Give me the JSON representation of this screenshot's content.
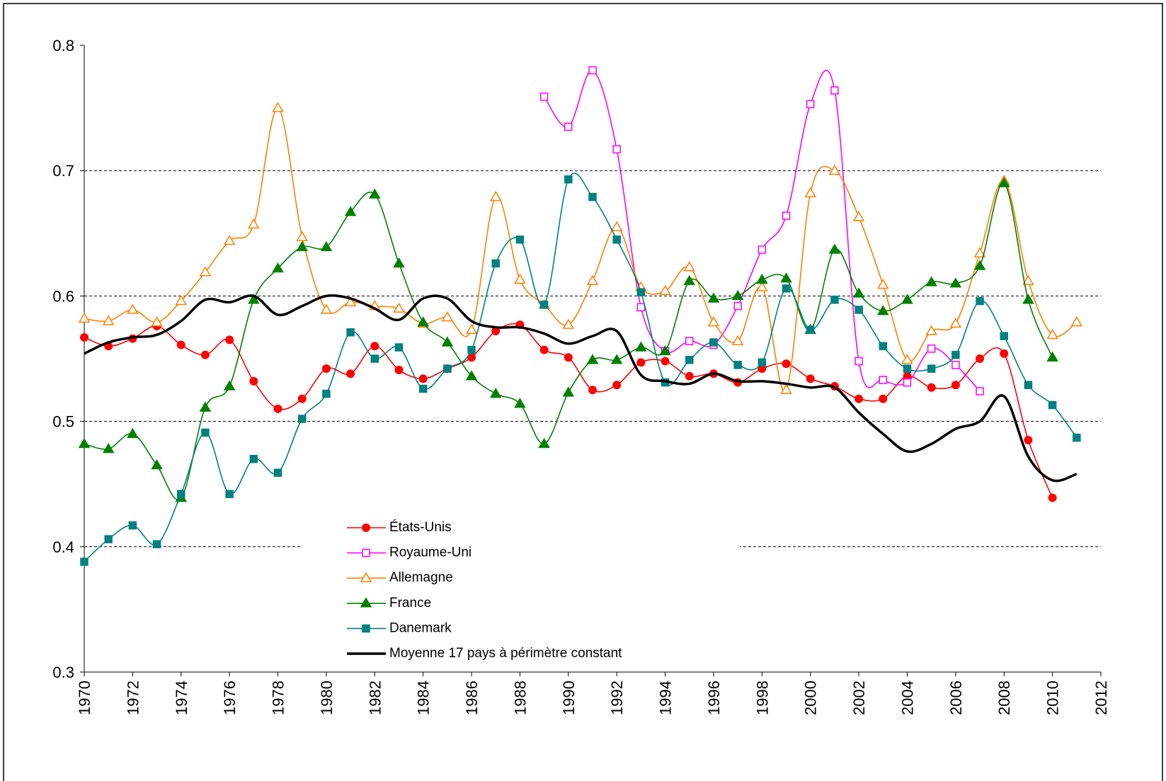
{
  "chart_data": {
    "type": "line",
    "x": [
      1970,
      1971,
      1972,
      1973,
      1974,
      1975,
      1976,
      1977,
      1978,
      1979,
      1980,
      1981,
      1982,
      1983,
      1984,
      1985,
      1986,
      1987,
      1988,
      1989,
      1990,
      1991,
      1992,
      1993,
      1994,
      1995,
      1996,
      1997,
      1998,
      1999,
      2000,
      2001,
      2002,
      2003,
      2004,
      2005,
      2006,
      2007,
      2008,
      2009,
      2010,
      2011
    ],
    "xlim": [
      1970,
      2012
    ],
    "xticks": [
      1970,
      1972,
      1974,
      1976,
      1978,
      1980,
      1982,
      1984,
      1986,
      1988,
      1990,
      1992,
      1994,
      1996,
      1998,
      2000,
      2002,
      2004,
      2006,
      2008,
      2010,
      2012
    ],
    "ylim": [
      0.3,
      0.8
    ],
    "yticks": [
      0.3,
      0.4,
      0.5,
      0.6,
      0.7,
      0.8
    ],
    "grid": true,
    "series": [
      {
        "name": "États-Unis",
        "color": "#ff0000",
        "marker": "circle",
        "values": [
          0.567,
          0.56,
          0.566,
          0.576,
          0.561,
          0.553,
          0.565,
          0.532,
          0.51,
          0.518,
          0.542,
          0.538,
          0.56,
          0.541,
          0.534,
          0.542,
          0.551,
          0.572,
          0.577,
          0.557,
          0.551,
          0.525,
          0.529,
          0.547,
          0.548,
          0.536,
          0.538,
          0.531,
          0.542,
          0.546,
          0.534,
          0.528,
          0.518,
          0.518,
          0.536,
          0.527,
          0.529,
          0.55,
          0.554,
          0.485,
          0.439,
          null
        ]
      },
      {
        "name": "Royaume-Uni",
        "color": "#ff00ff",
        "marker": "square-open",
        "values": [
          null,
          null,
          null,
          null,
          null,
          null,
          null,
          null,
          null,
          null,
          null,
          null,
          null,
          null,
          null,
          null,
          null,
          null,
          null,
          0.759,
          0.735,
          0.78,
          0.717,
          0.591,
          0.556,
          0.564,
          0.561,
          0.592,
          0.637,
          0.664,
          0.753,
          0.764,
          0.548,
          0.533,
          0.531,
          0.558,
          0.545,
          0.524,
          null,
          null,
          null,
          null
        ]
      },
      {
        "name": "Allemagne",
        "color": "#ff8000",
        "marker": "triangle-open",
        "values": [
          0.582,
          0.58,
          0.589,
          0.579,
          0.596,
          0.619,
          0.644,
          0.657,
          0.75,
          0.647,
          0.589,
          0.595,
          0.592,
          0.59,
          0.578,
          0.583,
          0.573,
          0.679,
          0.613,
          0.593,
          0.577,
          0.612,
          0.655,
          0.607,
          0.604,
          0.623,
          0.579,
          0.564,
          0.607,
          0.525,
          0.682,
          0.7,
          0.663,
          0.609,
          0.549,
          0.572,
          0.578,
          0.634,
          0.692,
          0.612,
          0.569,
          0.579
        ]
      },
      {
        "name": "France",
        "color": "#008000",
        "marker": "triangle",
        "values": [
          0.482,
          0.478,
          0.49,
          0.465,
          0.439,
          0.511,
          0.528,
          0.597,
          0.622,
          0.639,
          0.639,
          0.667,
          0.681,
          0.626,
          0.579,
          0.563,
          0.536,
          0.522,
          0.514,
          0.482,
          0.523,
          0.549,
          0.549,
          0.559,
          0.556,
          0.612,
          0.598,
          0.6,
          0.613,
          0.614,
          0.573,
          0.637,
          0.602,
          0.588,
          0.597,
          0.611,
          0.61,
          0.624,
          0.69,
          0.597,
          0.551,
          null
        ]
      },
      {
        "name": "Danemark",
        "color": "#008080",
        "marker": "square",
        "values": [
          0.388,
          0.406,
          0.417,
          0.402,
          0.442,
          0.491,
          0.442,
          0.47,
          0.459,
          0.502,
          0.522,
          0.571,
          0.55,
          0.559,
          0.526,
          0.542,
          0.557,
          0.626,
          0.645,
          0.593,
          0.693,
          0.679,
          0.645,
          0.603,
          0.531,
          0.549,
          0.563,
          0.545,
          0.547,
          0.606,
          0.573,
          0.597,
          0.589,
          0.56,
          0.542,
          0.542,
          0.553,
          0.596,
          0.568,
          0.529,
          0.513,
          0.487
        ]
      },
      {
        "name": "Moyenne 17 pays à périmètre constant",
        "color": "#000000",
        "marker": "none",
        "values": [
          0.554,
          0.563,
          0.567,
          0.569,
          0.58,
          0.597,
          0.595,
          0.6,
          0.585,
          0.592,
          0.6,
          0.598,
          0.59,
          0.581,
          0.598,
          0.598,
          0.58,
          0.575,
          0.575,
          0.57,
          0.562,
          0.568,
          0.572,
          0.537,
          0.532,
          0.53,
          0.538,
          0.532,
          0.532,
          0.53,
          0.527,
          0.527,
          0.507,
          0.49,
          0.476,
          0.482,
          0.494,
          0.5,
          0.52,
          0.472,
          0.453,
          0.458
        ]
      }
    ]
  }
}
